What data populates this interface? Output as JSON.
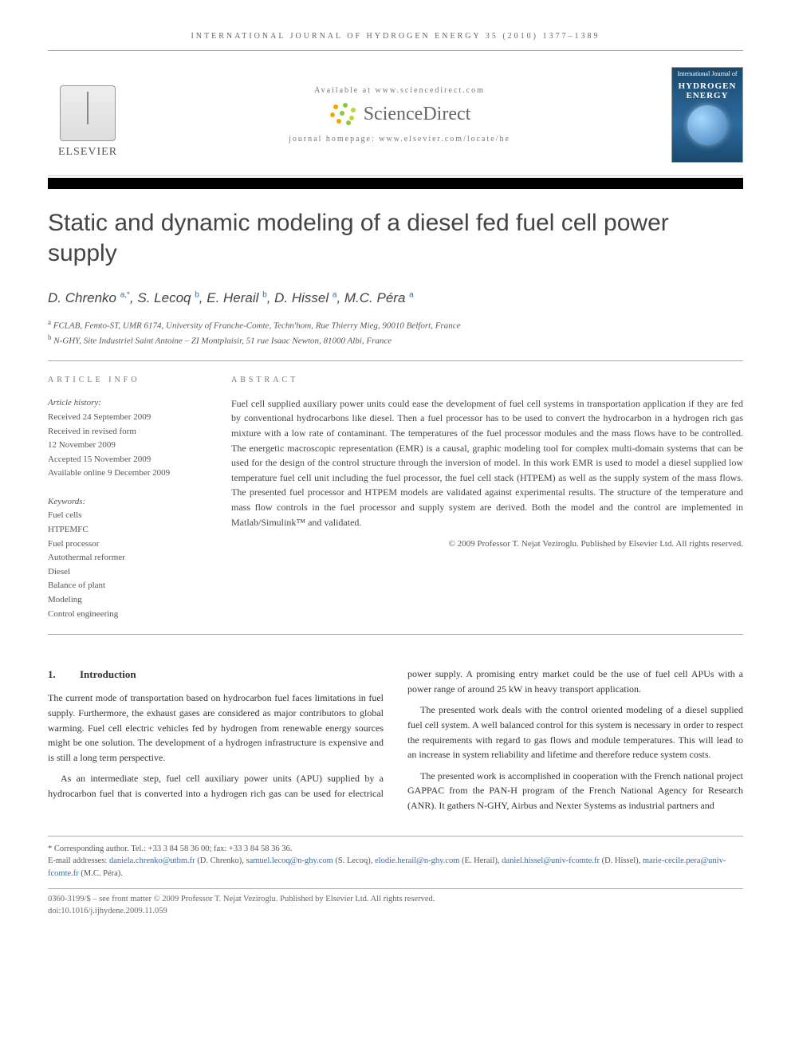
{
  "header": {
    "running_head": "INTERNATIONAL JOURNAL OF HYDROGEN ENERGY 35 (2010) 1377–1389",
    "available_at": "Available at www.sciencedirect.com",
    "sd_brand": "ScienceDirect",
    "homepage": "journal homepage: www.elsevier.com/locate/he",
    "publisher": "ELSEVIER",
    "cover_line1": "International Journal of",
    "cover_line2": "HYDROGEN",
    "cover_line3": "ENERGY"
  },
  "title": "Static and dynamic modeling of a diesel fed fuel cell power supply",
  "authors_html": "D. Chrenko <sup>a,*</sup>, S. Lecoq <sup>b</sup>, E. Herail <sup>b</sup>, D. Hissel <sup>a</sup>, M.C. Péra <sup>a</sup>",
  "affiliations": [
    {
      "sup": "a",
      "text": "FCLAB, Femto-ST, UMR 6174, University of Franche-Comte, Techn'hom, Rue Thierry Mieg, 90010 Belfort, France"
    },
    {
      "sup": "b",
      "text": "N-GHY, Site Industriel Saint Antoine – ZI Montplaisir, 51 rue Isaac Newton, 81000 Albi, France"
    }
  ],
  "article_info": {
    "heading": "ARTICLE INFO",
    "history_label": "Article history:",
    "history": [
      "Received 24 September 2009",
      "Received in revised form",
      "12 November 2009",
      "Accepted 15 November 2009",
      "Available online 9 December 2009"
    ],
    "keywords_label": "Keywords:",
    "keywords": [
      "Fuel cells",
      "HTPEMFC",
      "Fuel processor",
      "Autothermal reformer",
      "Diesel",
      "Balance of plant",
      "Modeling",
      "Control engineering"
    ]
  },
  "abstract": {
    "heading": "ABSTRACT",
    "text": "Fuel cell supplied auxiliary power units could ease the development of fuel cell systems in transportation application if they are fed by conventional hydrocarbons like diesel. Then a fuel processor has to be used to convert the hydrocarbon in a hydrogen rich gas mixture with a low rate of contaminant. The temperatures of the fuel processor modules and the mass flows have to be controlled. The energetic macroscopic representation (EMR) is a causal, graphic modeling tool for complex multi-domain systems that can be used for the design of the control structure through the inversion of model. In this work EMR is used to model a diesel supplied low temperature fuel cell unit including the fuel processor, the fuel cell stack (HTPEM) as well as the supply system of the mass flows. The presented fuel processor and HTPEM models are validated against experimental results. The structure of the temperature and mass flow controls in the fuel processor and supply system are derived. Both the model and the control are implemented in Matlab/Simulink™ and validated.",
    "copyright": "© 2009 Professor T. Nejat Veziroglu. Published by Elsevier Ltd. All rights reserved."
  },
  "section1": {
    "number": "1.",
    "title": "Introduction",
    "p1": "The current mode of transportation based on hydrocarbon fuel faces limitations in fuel supply. Furthermore, the exhaust gases are considered as major contributors to global warming. Fuel cell electric vehicles fed by hydrogen from renewable energy sources might be one solution. The development of a hydrogen infrastructure is expensive and is still a long term perspective.",
    "p2": "As an intermediate step, fuel cell auxiliary power units (APU) supplied by a hydrocarbon fuel that is converted into a hydrogen rich gas can be used for electrical power supply. A promising entry market could be the use of fuel cell APUs with a power range of around 25 kW in heavy transport application.",
    "p3": "The presented work deals with the control oriented modeling of a diesel supplied fuel cell system. A well balanced control for this system is necessary in order to respect the requirements with regard to gas flows and module temperatures. This will lead to an increase in system reliability and lifetime and therefore reduce system costs.",
    "p4": "The presented work is accomplished in cooperation with the French national project GAPPAC from the PAN-H program of the French National Agency for Research (ANR). It gathers N-GHY, Airbus and Nexter Systems as industrial partners and"
  },
  "footer": {
    "corresponding_label": "* Corresponding author.",
    "tel_fax": "Tel.: +33 3 84 58 36 00; fax: +33 3 84 58 36 36.",
    "emails_label": "E-mail addresses:",
    "emails": [
      {
        "addr": "daniela.chrenko@utbm.fr",
        "who": "(D. Chrenko)"
      },
      {
        "addr": "samuel.lecoq@n-ghy.com",
        "who": "(S. Lecoq)"
      },
      {
        "addr": "elodie.herail@n-ghy.com",
        "who": "(E. Herail)"
      },
      {
        "addr": "daniel.hissel@univ-fcomte.fr",
        "who": "(D. Hissel)"
      },
      {
        "addr": "marie-cecile.pera@univ-fcomte.fr",
        "who": "(M.C. Péra)"
      }
    ],
    "issn_line": "0360-3199/$ – see front matter © 2009 Professor T. Nejat Veziroglu. Published by Elsevier Ltd. All rights reserved.",
    "doi": "doi:10.1016/j.ijhydene.2009.11.059"
  },
  "colors": {
    "link": "#2a6ebb",
    "rule": "#aaaaaa",
    "heading": "#444444"
  }
}
